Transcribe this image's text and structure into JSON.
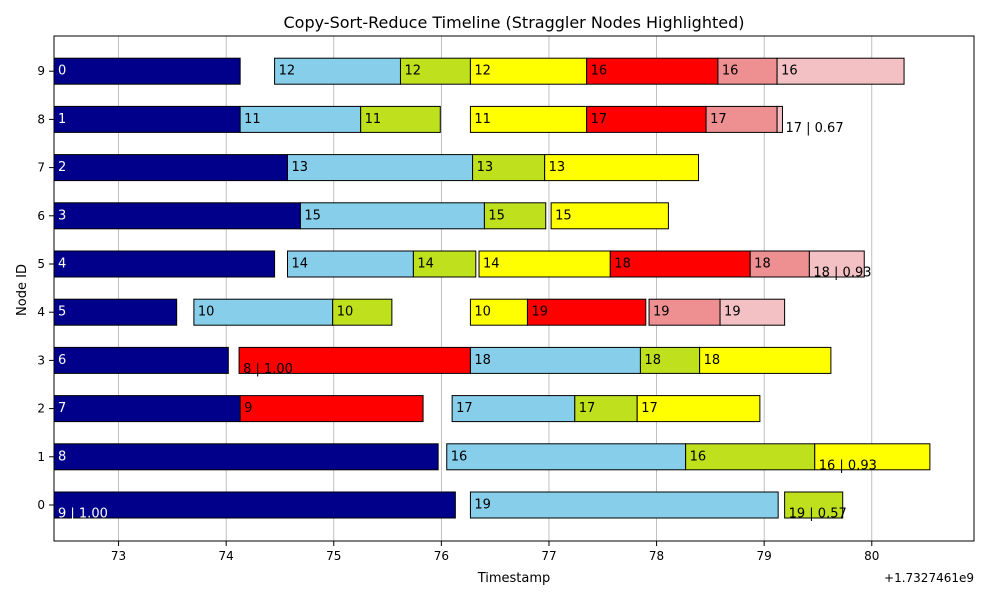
{
  "chart_data": {
    "type": "gantt",
    "title": "Copy-Sort-Reduce Timeline (Straggler Nodes Highlighted)",
    "xlabel": "Timestamp",
    "ylabel": "Node ID",
    "x_offset_label": "+1.7327461e9",
    "xlim": [
      72.4,
      80.95
    ],
    "x_ticks": [
      73,
      74,
      75,
      76,
      77,
      78,
      79,
      80
    ],
    "y_ticks": [
      0,
      1,
      2,
      3,
      4,
      5,
      6,
      7,
      8,
      9
    ],
    "straggler_nodes": [
      0,
      1
    ],
    "grid": "vertical",
    "colors": {
      "copy": "#00008b",
      "sort": "#87ceeb",
      "stage3": "#bfe01c",
      "stage4": "#ffff00",
      "straggler": "#ff0000",
      "stage6": "#ee8f91",
      "stage7": "#f3c0c4",
      "straggler_tick": "#ff0000"
    },
    "bars": [
      {
        "node": 9,
        "start": 72.4,
        "end": 74.13,
        "color": "copy",
        "label": "0"
      },
      {
        "node": 9,
        "start": 74.45,
        "end": 75.62,
        "color": "sort",
        "label": "12"
      },
      {
        "node": 9,
        "start": 75.62,
        "end": 76.27,
        "color": "stage3",
        "label": "12"
      },
      {
        "node": 9,
        "start": 76.27,
        "end": 77.35,
        "color": "stage4",
        "label": "12"
      },
      {
        "node": 9,
        "start": 77.35,
        "end": 78.57,
        "color": "straggler",
        "label": "16"
      },
      {
        "node": 9,
        "start": 78.57,
        "end": 79.12,
        "color": "stage6",
        "label": "16"
      },
      {
        "node": 9,
        "start": 79.12,
        "end": 80.3,
        "color": "stage7",
        "label": "16"
      },
      {
        "node": 8,
        "start": 72.4,
        "end": 74.13,
        "color": "copy",
        "label": "1"
      },
      {
        "node": 8,
        "start": 74.13,
        "end": 75.25,
        "color": "sort",
        "label": "11"
      },
      {
        "node": 8,
        "start": 75.25,
        "end": 75.99,
        "color": "stage3",
        "label": "11"
      },
      {
        "node": 8,
        "start": 76.27,
        "end": 77.35,
        "color": "stage4",
        "label": "11"
      },
      {
        "node": 8,
        "start": 77.35,
        "end": 78.46,
        "color": "straggler",
        "label": "17"
      },
      {
        "node": 8,
        "start": 78.46,
        "end": 79.12,
        "color": "stage6",
        "label": "17"
      },
      {
        "node": 8,
        "start": 79.12,
        "end": 79.17,
        "color": "stage7",
        "label": "17 | 0.67"
      },
      {
        "node": 7,
        "start": 72.4,
        "end": 74.57,
        "color": "copy",
        "label": "2"
      },
      {
        "node": 7,
        "start": 74.57,
        "end": 76.29,
        "color": "sort",
        "label": "13"
      },
      {
        "node": 7,
        "start": 76.29,
        "end": 76.96,
        "color": "stage3",
        "label": "13"
      },
      {
        "node": 7,
        "start": 76.96,
        "end": 78.39,
        "color": "stage4",
        "label": "13"
      },
      {
        "node": 6,
        "start": 72.4,
        "end": 74.69,
        "color": "copy",
        "label": "3"
      },
      {
        "node": 6,
        "start": 74.69,
        "end": 76.4,
        "color": "sort",
        "label": "15"
      },
      {
        "node": 6,
        "start": 76.4,
        "end": 76.97,
        "color": "stage3",
        "label": "15"
      },
      {
        "node": 6,
        "start": 77.02,
        "end": 78.11,
        "color": "stage4",
        "label": "15"
      },
      {
        "node": 5,
        "start": 72.4,
        "end": 74.45,
        "color": "copy",
        "label": "4"
      },
      {
        "node": 5,
        "start": 74.57,
        "end": 75.74,
        "color": "sort",
        "label": "14"
      },
      {
        "node": 5,
        "start": 75.74,
        "end": 76.32,
        "color": "stage3",
        "label": "14"
      },
      {
        "node": 5,
        "start": 76.35,
        "end": 77.57,
        "color": "stage4",
        "label": "14"
      },
      {
        "node": 5,
        "start": 77.57,
        "end": 78.87,
        "color": "straggler",
        "label": "18"
      },
      {
        "node": 5,
        "start": 78.87,
        "end": 79.42,
        "color": "stage6",
        "label": "18"
      },
      {
        "node": 5,
        "start": 79.42,
        "end": 79.93,
        "color": "stage7",
        "label": "18 | 0.93"
      },
      {
        "node": 4,
        "start": 72.4,
        "end": 73.54,
        "color": "copy",
        "label": "5"
      },
      {
        "node": 4,
        "start": 73.7,
        "end": 74.99,
        "color": "sort",
        "label": "10"
      },
      {
        "node": 4,
        "start": 74.99,
        "end": 75.54,
        "color": "stage3",
        "label": "10"
      },
      {
        "node": 4,
        "start": 76.27,
        "end": 76.8,
        "color": "stage4",
        "label": "10"
      },
      {
        "node": 4,
        "start": 76.8,
        "end": 77.9,
        "color": "straggler",
        "label": "19"
      },
      {
        "node": 4,
        "start": 77.93,
        "end": 78.59,
        "color": "stage6",
        "label": "19"
      },
      {
        "node": 4,
        "start": 78.59,
        "end": 79.19,
        "color": "stage7",
        "label": "19"
      },
      {
        "node": 3,
        "start": 72.4,
        "end": 74.02,
        "color": "copy",
        "label": "6"
      },
      {
        "node": 3,
        "start": 74.12,
        "end": 76.27,
        "color": "straggler",
        "label": "8 | 1.00"
      },
      {
        "node": 3,
        "start": 76.27,
        "end": 77.85,
        "color": "sort",
        "label": "18"
      },
      {
        "node": 3,
        "start": 77.85,
        "end": 78.4,
        "color": "stage3",
        "label": "18"
      },
      {
        "node": 3,
        "start": 78.4,
        "end": 79.62,
        "color": "stage4",
        "label": "18"
      },
      {
        "node": 2,
        "start": 72.4,
        "end": 74.13,
        "color": "copy",
        "label": "7"
      },
      {
        "node": 2,
        "start": 74.13,
        "end": 75.83,
        "color": "straggler",
        "label": "9"
      },
      {
        "node": 2,
        "start": 76.1,
        "end": 77.24,
        "color": "sort",
        "label": "17"
      },
      {
        "node": 2,
        "start": 77.24,
        "end": 77.82,
        "color": "stage3",
        "label": "17"
      },
      {
        "node": 2,
        "start": 77.82,
        "end": 78.96,
        "color": "stage4",
        "label": "17"
      },
      {
        "node": 1,
        "start": 72.4,
        "end": 75.97,
        "color": "copy",
        "label": "8"
      },
      {
        "node": 1,
        "start": 76.05,
        "end": 78.27,
        "color": "sort",
        "label": "16"
      },
      {
        "node": 1,
        "start": 78.27,
        "end": 79.47,
        "color": "stage3",
        "label": "16"
      },
      {
        "node": 1,
        "start": 79.47,
        "end": 80.54,
        "color": "stage4",
        "label": "16 | 0.93"
      },
      {
        "node": 0,
        "start": 72.4,
        "end": 76.13,
        "color": "copy",
        "label": "9 | 1.00"
      },
      {
        "node": 0,
        "start": 76.27,
        "end": 79.13,
        "color": "sort",
        "label": "19"
      },
      {
        "node": 0,
        "start": 79.19,
        "end": 79.73,
        "color": "stage3",
        "label": "19 | 0.57"
      }
    ]
  }
}
